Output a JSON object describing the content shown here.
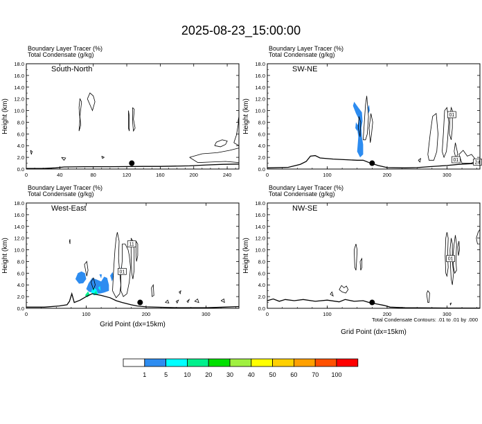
{
  "title": "2025-08-23_15:00:00",
  "panel_header": {
    "line1": "Boundary Layer Tracer   (%)",
    "line2": "Total Condensate   (g/kg)"
  },
  "ylabel": "Height (km)",
  "xlabel": "Grid Point (dx=15km)",
  "contour_note": "Total Condensate Contours: .01 to .01 by .000",
  "chart_data": [
    {
      "type": "heatmap",
      "name": "South-North",
      "ylabel": "Height (km)",
      "xlim": [
        0,
        254
      ],
      "ylim": [
        0,
        18
      ],
      "xticks": [
        0,
        40,
        80,
        120,
        160,
        200,
        240
      ],
      "yticks": [
        "0.0",
        "2.0",
        "4.0",
        "6.0",
        "8.0",
        "10.0",
        "12.0",
        "14.0",
        "16.0",
        "18.0"
      ],
      "marker": {
        "x": 126,
        "y": 1.0
      },
      "terrain": [
        [
          0,
          0.1
        ],
        [
          20,
          0.1
        ],
        [
          35,
          0.2
        ],
        [
          45,
          0.35
        ],
        [
          70,
          0.4
        ],
        [
          100,
          0.4
        ],
        [
          140,
          0.45
        ],
        [
          160,
          0.45
        ],
        [
          175,
          0.5
        ],
        [
          195,
          0.55
        ],
        [
          215,
          0.7
        ],
        [
          235,
          0.8
        ],
        [
          254,
          0.85
        ]
      ],
      "contour_labels": [],
      "tracer_areas": []
    },
    {
      "type": "heatmap",
      "name": "SW-NE",
      "xlim": [
        0,
        355
      ],
      "ylim": [
        0,
        18
      ],
      "xticks": [
        0,
        100,
        200,
        300
      ],
      "yticks": [
        "0.0",
        "2.0",
        "4.0",
        "6.0",
        "8.0",
        "10.0",
        "12.0",
        "14.0",
        "16.0",
        "18.0"
      ],
      "marker": {
        "x": 175,
        "y": 1.0
      },
      "terrain": [
        [
          0,
          0.2
        ],
        [
          35,
          0.3
        ],
        [
          55,
          0.8
        ],
        [
          65,
          1.3
        ],
        [
          72,
          2.2
        ],
        [
          80,
          2.3
        ],
        [
          88,
          1.9
        ],
        [
          110,
          1.7
        ],
        [
          150,
          1.5
        ],
        [
          160,
          1.5
        ],
        [
          170,
          1.1
        ],
        [
          185,
          0.6
        ],
        [
          200,
          0.25
        ],
        [
          230,
          0.2
        ],
        [
          250,
          0.25
        ],
        [
          270,
          0.4
        ],
        [
          300,
          0.6
        ],
        [
          320,
          0.8
        ],
        [
          355,
          1.0
        ]
      ],
      "contour_labels": [
        "01",
        "01",
        "24"
      ],
      "tracer_areas": [
        {
          "value": "1"
        }
      ]
    },
    {
      "type": "heatmap",
      "name": "West-East",
      "xlabel": "Grid Point (dx=15km)",
      "ylabel": "Height (km)",
      "xlim": [
        0,
        355
      ],
      "ylim": [
        0,
        18
      ],
      "xticks": [
        0,
        100,
        200,
        300
      ],
      "yticks": [
        "0.0",
        "2.0",
        "4.0",
        "6.0",
        "8.0",
        "10.0",
        "12.0",
        "14.0",
        "16.0",
        "18.0"
      ],
      "marker": {
        "x": 190,
        "y": 1.0
      },
      "terrain": [
        [
          0,
          0.2
        ],
        [
          30,
          0.2
        ],
        [
          55,
          0.4
        ],
        [
          68,
          0.6
        ],
        [
          72,
          1.2
        ],
        [
          76,
          2.5
        ],
        [
          80,
          1.0
        ],
        [
          90,
          1.4
        ],
        [
          100,
          2.0
        ],
        [
          110,
          2.5
        ],
        [
          125,
          2.2
        ],
        [
          140,
          1.8
        ],
        [
          150,
          1.3
        ],
        [
          160,
          1.0
        ],
        [
          175,
          0.6
        ],
        [
          185,
          0.4
        ],
        [
          200,
          0.25
        ],
        [
          255,
          0.1
        ],
        [
          300,
          0.1
        ],
        [
          330,
          0.2
        ],
        [
          355,
          0.3
        ]
      ],
      "contour_labels": [
        "11",
        "01"
      ],
      "tracer_areas": [
        {
          "value": "1"
        },
        {
          "value": "10"
        },
        {
          "value": "20"
        }
      ]
    },
    {
      "type": "heatmap",
      "name": "NW-SE",
      "xlabel": "Grid Point (dx=15km)",
      "xlim": [
        0,
        355
      ],
      "ylim": [
        0,
        18
      ],
      "xticks": [
        0,
        100,
        200,
        300
      ],
      "yticks": [
        "0.0",
        "2.0",
        "4.0",
        "6.0",
        "8.0",
        "10.0",
        "12.0",
        "14.0",
        "16.0",
        "18.0"
      ],
      "marker": {
        "x": 175,
        "y": 1.0
      },
      "terrain": [
        [
          0,
          1.3
        ],
        [
          10,
          1.6
        ],
        [
          20,
          1.2
        ],
        [
          30,
          1.5
        ],
        [
          45,
          1.3
        ],
        [
          60,
          1.5
        ],
        [
          80,
          1.2
        ],
        [
          100,
          1.4
        ],
        [
          120,
          1.1
        ],
        [
          130,
          1.5
        ],
        [
          145,
          1.2
        ],
        [
          160,
          1.3
        ],
        [
          170,
          1.0
        ],
        [
          185,
          0.7
        ],
        [
          195,
          0.5
        ],
        [
          205,
          0.2
        ],
        [
          230,
          0.1
        ],
        [
          300,
          0.05
        ],
        [
          355,
          0.05
        ]
      ],
      "contour_labels": [
        "01"
      ],
      "tracer_areas": []
    }
  ],
  "colorbar": {
    "labels": [
      "1",
      "5",
      "10",
      "20",
      "30",
      "40",
      "50",
      "60",
      "70",
      "100"
    ],
    "colors": [
      "#ffffff",
      "#2d8cf0",
      "#00ffff",
      "#00f08c",
      "#00e000",
      "#a0f040",
      "#ffff00",
      "#ffd000",
      "#ffa000",
      "#ff5000",
      "#ff0000"
    ]
  },
  "colors": {
    "tracer_blue": "#2d8cf0",
    "tracer_cyan": "#00ffff",
    "tracer_green": "#00f08c",
    "marker": "#000000"
  }
}
